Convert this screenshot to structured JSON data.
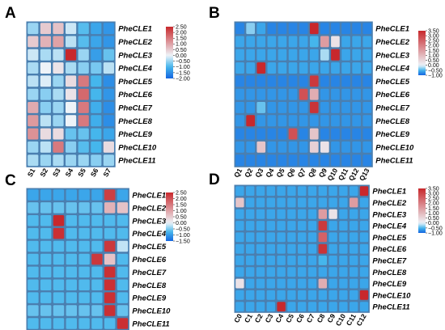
{
  "chart_data": [
    {
      "panel": "A",
      "type": "heatmap",
      "rows": [
        "PheCLE1",
        "PheCLE2",
        "PheCLE3",
        "PheCLE4",
        "PheCLE5",
        "PheCLE6",
        "PheCLE7",
        "PheCLE8",
        "PheCLE9",
        "PheCLE10",
        "PheCLE11"
      ],
      "columns": [
        "S1",
        "S2",
        "S3",
        "S4",
        "S5",
        "S6",
        "S7"
      ],
      "values": [
        [
          -0.5,
          0.5,
          0.6,
          -0.2,
          -0.9,
          -1.2,
          -1.4
        ],
        [
          0.5,
          0.8,
          1.0,
          -0.3,
          -0.9,
          -1.2,
          -1.4
        ],
        [
          -0.2,
          -0.4,
          -0.3,
          2.5,
          -0.5,
          -1.3,
          -0.8
        ],
        [
          -0.4,
          0.0,
          0.2,
          -0.4,
          -0.6,
          -0.7,
          -0.3
        ],
        [
          -0.3,
          -0.1,
          -0.5,
          0.3,
          1.5,
          -1.0,
          -1.5
        ],
        [
          -0.5,
          -0.6,
          -0.4,
          0.2,
          1.7,
          -1.0,
          -1.4
        ],
        [
          0.9,
          -0.6,
          -0.5,
          0.0,
          1.5,
          -1.1,
          -1.5
        ],
        [
          1.1,
          -0.3,
          -0.5,
          0.0,
          1.5,
          -1.1,
          -1.5
        ],
        [
          1.2,
          0.3,
          0.3,
          -0.8,
          -0.8,
          -1.0,
          -1.2
        ],
        [
          -0.5,
          -0.3,
          1.5,
          -0.6,
          -0.9,
          -1.0,
          0.3
        ],
        [
          -0.4,
          -0.5,
          -0.4,
          -0.5,
          -0.5,
          -0.6,
          -0.5
        ]
      ],
      "legend_ticks": [
        "2.50",
        "2.00",
        "1.50",
        "1.00",
        "0.50",
        "0.00",
        "−0.50",
        "−1.00",
        "−1.50",
        "−2.00"
      ],
      "color_range": [
        -2.0,
        2.5
      ]
    },
    {
      "panel": "B",
      "type": "heatmap",
      "rows": [
        "PheCLE1",
        "PheCLE2",
        "PheCLE3",
        "PheCLE4",
        "PheCLE5",
        "PheCLE6",
        "PheCLE7",
        "PheCLE8",
        "PheCLE9",
        "PheCLE10",
        "PheCLE11"
      ],
      "columns": [
        "Q1",
        "Q2",
        "Q3",
        "Q4",
        "Q5",
        "Q6",
        "Q7",
        "Q8",
        "Q9",
        "Q10",
        "Q11",
        "Q12",
        "Q13"
      ],
      "values": [
        [
          -0.8,
          -0.3,
          -0.6,
          -0.8,
          -0.8,
          -0.8,
          -0.8,
          3.5,
          -0.8,
          -0.8,
          -0.8,
          -0.8,
          -0.8
        ],
        [
          -0.6,
          -0.6,
          -0.6,
          -0.6,
          -0.6,
          -0.6,
          -0.6,
          -0.5,
          1.5,
          0.3,
          -0.6,
          -0.6,
          -0.6
        ],
        [
          -0.6,
          -0.6,
          -0.6,
          -0.6,
          -0.6,
          -0.6,
          -0.6,
          -0.6,
          -0.2,
          3.5,
          -0.6,
          -0.6,
          -0.6
        ],
        [
          -0.6,
          -0.6,
          3.5,
          -0.6,
          -0.6,
          -0.6,
          -0.6,
          -0.6,
          -0.6,
          -0.6,
          -0.6,
          -0.6,
          -0.6
        ],
        [
          -0.8,
          -0.8,
          -0.8,
          -0.8,
          -0.8,
          -0.8,
          -0.8,
          3.2,
          -0.8,
          -0.8,
          -0.8,
          -0.8,
          -0.8
        ],
        [
          -0.7,
          -0.7,
          -0.7,
          -0.7,
          -0.7,
          -0.7,
          2.8,
          1.2,
          -0.7,
          -0.7,
          -0.7,
          -0.7,
          -0.7
        ],
        [
          -0.7,
          -0.7,
          -0.4,
          -0.7,
          -0.7,
          -0.7,
          -0.7,
          3.3,
          -0.7,
          -0.7,
          -0.7,
          -0.7,
          -0.7
        ],
        [
          -0.7,
          3.5,
          -0.7,
          -0.7,
          -0.7,
          -0.7,
          -0.7,
          -0.7,
          -0.7,
          -0.7,
          -0.7,
          -0.7,
          -0.7
        ],
        [
          -0.8,
          -0.8,
          -0.8,
          -0.8,
          -0.8,
          2.8,
          -0.8,
          0.8,
          -0.8,
          -0.8,
          -0.8,
          -0.8,
          -0.8
        ],
        [
          -0.7,
          -0.7,
          0.8,
          -0.7,
          -0.7,
          -0.7,
          -0.7,
          0.6,
          0.3,
          -0.7,
          -0.7,
          -0.7,
          -0.7
        ],
        [
          -0.8,
          -0.8,
          -0.8,
          -0.8,
          -0.8,
          -0.8,
          -0.8,
          -0.8,
          -0.8,
          -0.8,
          -0.8,
          -0.8,
          -0.8
        ]
      ],
      "legend_ticks": [
        "3.50",
        "3.00",
        "2.50",
        "2.00",
        "1.50",
        "1.00",
        "0.50",
        "0.00",
        "−0.50",
        "−1.00"
      ],
      "color_range": [
        -1.0,
        3.5
      ]
    },
    {
      "panel": "C",
      "type": "heatmap",
      "rows": [
        "PheCLE1",
        "PheCLE2",
        "PheCLE3",
        "PheCLE4",
        "PheCLE5",
        "PheCLE6",
        "PheCLE7",
        "PheCLE8",
        "PheCLE9",
        "PheCLE10",
        "PheCLE11"
      ],
      "columns": [
        "B1",
        "B2",
        "B3",
        "B4",
        "B5",
        "B6",
        "B7",
        "B8"
      ],
      "values": [
        [
          -0.9,
          -0.9,
          -0.9,
          -0.9,
          -0.9,
          -0.9,
          2.2,
          -0.9
        ],
        [
          -0.6,
          -0.6,
          -0.6,
          -0.6,
          -0.6,
          -0.6,
          0.8,
          0.6
        ],
        [
          -0.7,
          -0.7,
          2.5,
          -0.7,
          -0.7,
          -0.7,
          -0.7,
          -0.7
        ],
        [
          -0.7,
          -0.7,
          2.4,
          -0.7,
          -0.7,
          -0.7,
          -0.7,
          -0.7
        ],
        [
          -0.7,
          -0.7,
          -0.7,
          -0.7,
          -0.7,
          -0.7,
          2.3,
          -0.2
        ],
        [
          -0.7,
          -0.7,
          -0.7,
          -0.7,
          -0.7,
          2.3,
          0.6,
          -0.7
        ],
        [
          -0.7,
          -0.7,
          -0.7,
          -0.7,
          -0.7,
          -0.7,
          2.4,
          -0.7
        ],
        [
          -0.7,
          -0.7,
          -0.7,
          -0.7,
          -0.7,
          -0.7,
          2.4,
          -0.7
        ],
        [
          -0.7,
          -0.7,
          -0.7,
          -0.7,
          -0.7,
          -0.7,
          2.4,
          -0.7
        ],
        [
          -0.6,
          -0.6,
          -0.6,
          -0.6,
          -0.6,
          -0.6,
          2.4,
          -0.6
        ],
        [
          -0.7,
          -0.7,
          -0.7,
          -0.7,
          -0.7,
          -0.7,
          -0.7,
          2.4
        ]
      ],
      "legend_ticks": [
        "2.50",
        "2.00",
        "1.50",
        "1.00",
        "0.50",
        "0.00",
        "−0.50",
        "−1.00",
        "−1.50"
      ],
      "color_range": [
        -1.5,
        2.5
      ]
    },
    {
      "panel": "D",
      "type": "heatmap",
      "rows": [
        "PheCLE1",
        "PheCLE2",
        "PheCLE3",
        "PheCLE4",
        "PheCLE5",
        "PheCLE6",
        "PheCLE7",
        "PheCLE8",
        "PheCLE9",
        "PheCLE10",
        "PheCLE11"
      ],
      "columns": [
        "C0",
        "C1",
        "C2",
        "C3",
        "C4",
        "C5",
        "C6",
        "C7",
        "C8",
        "C9",
        "C10",
        "C11",
        "C12"
      ],
      "values": [
        [
          -0.6,
          -0.6,
          -0.6,
          -0.6,
          -0.6,
          -0.6,
          -0.6,
          -0.6,
          -0.6,
          -0.6,
          -0.6,
          -0.6,
          3.5
        ],
        [
          0.8,
          -0.6,
          -0.6,
          -0.6,
          -0.6,
          -0.6,
          -0.6,
          -0.6,
          -0.6,
          -0.6,
          -0.6,
          1.5,
          -0.6
        ],
        [
          -0.6,
          -0.6,
          -0.6,
          -0.6,
          -0.6,
          -0.6,
          -0.6,
          -0.6,
          1.5,
          0.3,
          -0.6,
          -0.6,
          -0.6
        ],
        [
          -0.6,
          -0.6,
          -0.6,
          -0.6,
          -0.6,
          -0.6,
          -0.6,
          -0.6,
          3.2,
          -0.6,
          -0.6,
          -0.6,
          -0.6
        ],
        [
          -0.6,
          -0.6,
          -0.6,
          -0.6,
          -0.6,
          -0.6,
          -0.6,
          -0.6,
          2.5,
          -0.6,
          -0.6,
          -0.6,
          -0.6
        ],
        [
          -0.6,
          -0.6,
          -0.6,
          -0.6,
          -0.6,
          -0.6,
          -0.6,
          -0.6,
          3.3,
          -0.6,
          -0.6,
          -0.6,
          -0.6
        ],
        [
          -0.6,
          -0.6,
          -0.6,
          -0.6,
          -0.6,
          -0.6,
          -0.6,
          -0.6,
          -0.5,
          -0.6,
          -0.6,
          -0.6,
          -0.6
        ],
        [
          -0.6,
          -0.6,
          -0.6,
          -0.6,
          -0.6,
          -0.6,
          -0.6,
          -0.6,
          -0.6,
          -0.6,
          -0.6,
          -0.6,
          -0.6
        ],
        [
          0.3,
          -0.6,
          -0.6,
          -0.6,
          -0.6,
          -0.6,
          -0.6,
          -0.6,
          1.2,
          -0.6,
          -0.6,
          -0.6,
          -0.6
        ],
        [
          -0.6,
          -0.6,
          -0.6,
          -0.6,
          -0.6,
          -0.6,
          -0.6,
          -0.6,
          -0.6,
          -0.6,
          -0.6,
          -0.6,
          3.5
        ],
        [
          -0.6,
          -0.6,
          -0.6,
          -0.6,
          3.5,
          -0.6,
          -0.6,
          -0.6,
          -0.6,
          -0.6,
          -0.6,
          -0.6,
          -0.6
        ]
      ],
      "legend_ticks": [
        "3.50",
        "3.00",
        "2.50",
        "2.00",
        "1.50",
        "1.00",
        "0.50",
        "0.00",
        "−0.50",
        "−1.00"
      ],
      "color_range": [
        -1.0,
        3.5
      ]
    }
  ],
  "colors": {
    "low": "#1565e0",
    "mid_low": "#45b6ec",
    "mid": "#eef3f8",
    "high": "#c8282c"
  }
}
